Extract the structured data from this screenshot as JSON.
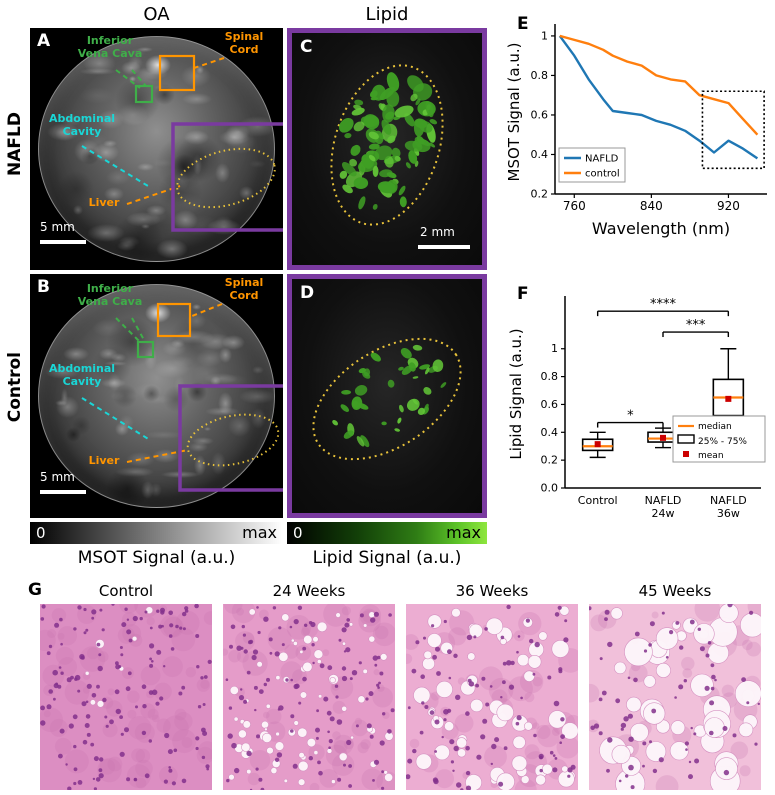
{
  "headers": {
    "oa_column": "OA",
    "lipid_column": "Lipid"
  },
  "side_labels": {
    "nafld": "NAFLD",
    "control": "Control"
  },
  "panels": {
    "a": {
      "letter": "A",
      "ivc_label": "Inferior\nVena Cava",
      "spinal_label": "Spinal\nCord",
      "abdominal_label": "Abdominal\nCavity",
      "liver_label": "Liver",
      "scale_label": "5 mm"
    },
    "b": {
      "letter": "B",
      "ivc_label": "Inferior\nVena Cava",
      "spinal_label": "Spinal\nCord",
      "abdominal_label": "Abdominal\nCavity",
      "liver_label": "Liver",
      "scale_label": "5 mm"
    },
    "c": {
      "letter": "C",
      "scale_label": "2 mm"
    },
    "d": {
      "letter": "D"
    },
    "e": {
      "letter": "E"
    },
    "f": {
      "letter": "F"
    },
    "g": {
      "letter": "G",
      "labels": [
        "Control",
        "24 Weeks",
        "36 Weeks",
        "45 Weeks"
      ]
    }
  },
  "colorbars": {
    "msot": {
      "min": "0",
      "max": "max",
      "caption": "MSOT Signal (a.u.)"
    },
    "lipid": {
      "min": "0",
      "max": "max",
      "caption": "Lipid Signal (a.u.)"
    }
  },
  "colors": {
    "purple_border": "#7a3aa0",
    "annotation_orange": "#ff9500",
    "annotation_green": "#3fae49",
    "annotation_cyan": "#1ad6d6",
    "liver_outline": "#e8c23a",
    "nafld_line": "#1f77b4",
    "control_line": "#ff7f0e",
    "mean_marker": "#cc0000"
  },
  "chart_data": [
    {
      "id": "E",
      "type": "line",
      "title": "",
      "xlabel": "Wavelength (nm)",
      "ylabel": "MSOT Signal (a.u.)",
      "xlim": [
        740,
        960
      ],
      "ylim": [
        0.2,
        1.03
      ],
      "xticks": [
        760,
        840,
        920
      ],
      "yticks": [
        0.2,
        0.4,
        0.6,
        0.8,
        1.0
      ],
      "grid": false,
      "legend_position": "lower left",
      "x": [
        745,
        760,
        775,
        790,
        800,
        815,
        830,
        845,
        860,
        875,
        890,
        905,
        920,
        935,
        950
      ],
      "series": [
        {
          "name": "NAFLD",
          "color": "#1f77b4",
          "values": [
            1.0,
            0.9,
            0.78,
            0.68,
            0.62,
            0.61,
            0.6,
            0.57,
            0.55,
            0.52,
            0.47,
            0.41,
            0.47,
            0.43,
            0.38
          ]
        },
        {
          "name": "control",
          "color": "#ff7f0e",
          "values": [
            1.0,
            0.98,
            0.96,
            0.93,
            0.9,
            0.87,
            0.85,
            0.8,
            0.78,
            0.77,
            0.7,
            0.68,
            0.66,
            0.58,
            0.5
          ]
        }
      ],
      "highlight_box": {
        "x": [
          893,
          957
        ],
        "y": [
          0.33,
          0.72
        ]
      }
    },
    {
      "id": "F",
      "type": "box",
      "title": "",
      "xlabel": "",
      "ylabel": "Lipid Signal (a.u.)",
      "ylim": [
        0,
        1.35
      ],
      "yticks": [
        0.0,
        0.2,
        0.4,
        0.6,
        0.8,
        1.0
      ],
      "categories": [
        "Control",
        "NAFLD 24w",
        "NAFLD 36w"
      ],
      "boxes": [
        {
          "whisker_low": 0.22,
          "q1": 0.27,
          "median": 0.3,
          "mean": 0.315,
          "q3": 0.35,
          "whisker_high": 0.4
        },
        {
          "whisker_low": 0.29,
          "q1": 0.33,
          "median": 0.355,
          "mean": 0.36,
          "q3": 0.4,
          "whisker_high": 0.43
        },
        {
          "whisker_low": 0.38,
          "q1": 0.52,
          "median": 0.65,
          "mean": 0.64,
          "q3": 0.78,
          "whisker_high": 1.0
        }
      ],
      "significance": [
        {
          "from": 0,
          "to": 1,
          "label": "*",
          "level": 0.47
        },
        {
          "from": 1,
          "to": 2,
          "label": "***",
          "level": 1.12
        },
        {
          "from": 0,
          "to": 2,
          "label": "****",
          "level": 1.27
        }
      ],
      "legend": [
        {
          "label": "median",
          "color": "#ff7f0e",
          "style": "line"
        },
        {
          "label": "25% - 75%",
          "color": "#000000",
          "style": "box"
        },
        {
          "label": "mean",
          "color": "#cc0000",
          "style": "square"
        }
      ]
    }
  ]
}
